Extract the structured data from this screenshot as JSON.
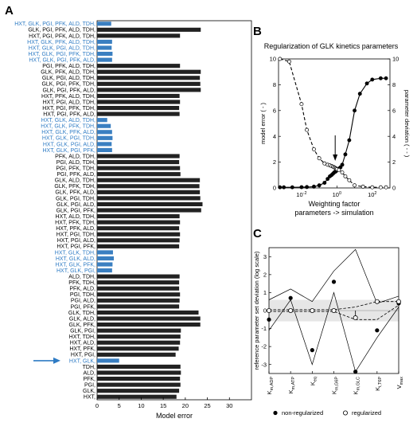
{
  "panels": {
    "a": "A",
    "b": "B",
    "c": "C"
  },
  "colors": {
    "bar_default": "#222222",
    "bar_highlight": "#3a7fc1",
    "text_highlight": "#2e7bc4",
    "arrow": "#2e7bc4",
    "band": "#e6e6e6"
  },
  "chart_data": [
    {
      "type": "bar",
      "orientation": "horizontal",
      "xlabel": "Model error",
      "xlim": [
        0,
        35
      ],
      "xticks": [
        0,
        5,
        10,
        15,
        20,
        25,
        30
      ],
      "categories": [
        "HXT, GLK, PGI, PFK, ALD, TDH,",
        "GLK, PGI, PFK, ALD, TDH,",
        "HXT, PGI, PFK, ALD, TDH,",
        "HXT, GLK, PFK, ALD, TDH,",
        "HXT, GLK, PGI, ALD, TDH,",
        "HXT, GLK, PGI, PFK, TDH,",
        "HXT, GLK, PGI, PFK, ALD,",
        "PGI, PFK, ALD, TDH,",
        "GLK, PFK, ALD, TDH,",
        "GLK, PGI, ALD, TDH,",
        "GLK, PGI, PFK, TDH,",
        "GLK, PGI, PFK, ALD,",
        "HXT, PFK, ALD, TDH,",
        "HXT, PGI, ALD, TDH,",
        "HXT, PGI, PFK, TDH,",
        "HXT, PGI, PFK, ALD,",
        "HXT, GLK, ALD, TDH,",
        "HXT, GLK, PFK, TDH,",
        "HXT, GLK, PFK, ALD,",
        "HXT, GLK, PGI, TDH,",
        "HXT, GLK, PGI, ALD,",
        "HXT, GLK, PGI, PFK,",
        "PFK, ALD, TDH,",
        "PGI, ALD, TDH,",
        "PGI, PFK, TDH,",
        "PGI, PFK, ALD,",
        "GLK, ALD, TDH,",
        "GLK, PFK, TDH,",
        "GLK, PFK, ALD,",
        "GLK, PGI, TDH,",
        "GLK, PGI, ALD,",
        "GLK, PGI, PFK,",
        "HXT, ALD, TDH,",
        "HXT, PFK, TDH,",
        "HXT, PFK, ALD,",
        "HXT, PGI, TDH,",
        "HXT, PGI, ALD,",
        "HXT, PGI, PFK,",
        "HXT, GLK, TDH,",
        "HXT, GLK, ALD,",
        "HXT, GLK, PFK,",
        "HXT, GLK, PGI,",
        "ALD, TDH,",
        "PFK, TDH,",
        "PFK, ALD,",
        "PGI, TDH,",
        "PGI, ALD,",
        "PGI, PFK,",
        "GLK, TDH,",
        "GLK, ALD,",
        "GLK, PFK,",
        "GLK, PGI,",
        "HXT, TDH,",
        "HXT, ALD,",
        "HXT, PFK,",
        "HXT, PGI,",
        "HXT, GLK,",
        "TDH,",
        "ALD,",
        "PFK,",
        "PGI,",
        "GLK,",
        "HXT,"
      ],
      "values": [
        3.2,
        23.5,
        18.8,
        3.4,
        3.3,
        3.5,
        3.4,
        18.8,
        23.5,
        23.3,
        23.4,
        23.5,
        18.7,
        18.8,
        18.6,
        18.7,
        2.3,
        3.1,
        3.4,
        3.5,
        3.3,
        3.4,
        18.7,
        18.6,
        18.8,
        18.9,
        23.3,
        23.2,
        23.3,
        23.4,
        23.9,
        23.6,
        18.7,
        18.8,
        18.6,
        18.8,
        18.7,
        18.6,
        3.6,
        3.8,
        3.5,
        3.4,
        18.7,
        18.6,
        18.6,
        18.8,
        18.7,
        18.6,
        23.0,
        23.4,
        23.4,
        19.0,
        18.9,
        18.8,
        18.5,
        17.8,
        5.0,
        18.9,
        19.0,
        18.8,
        18.9,
        18.6,
        18.0
      ],
      "highlighted": [
        0,
        3,
        4,
        5,
        6,
        16,
        17,
        18,
        19,
        20,
        21,
        38,
        39,
        40,
        41,
        56
      ]
    },
    {
      "type": "line",
      "title": "Regularization of GLK kinetics parameters",
      "xlabel": "Weighting factor",
      "xlabel2": "parameters -> simulation",
      "ylabel": "model error (  -  )",
      "ylabel_right": "parameter deviation (  - -  )",
      "xscale": "log",
      "xlim": [
        0.0005,
        1000
      ],
      "ylim": [
        0,
        10
      ],
      "ylim_right": [
        0,
        10
      ],
      "xticks": [
        "10^-2",
        "10^0",
        "10^2"
      ],
      "yticks": [
        0,
        2,
        4,
        6,
        8,
        10
      ],
      "yticks_right": [
        0,
        2,
        4,
        6,
        8,
        10
      ],
      "series": [
        {
          "style": "solid",
          "x": [
            0.0006,
            0.001,
            0.003,
            0.01,
            0.02,
            0.05,
            0.1,
            0.2,
            0.3,
            0.4,
            0.5,
            0.6,
            0.7,
            0.8,
            0.9,
            1,
            1.3,
            1.6,
            2,
            3,
            5,
            10,
            20,
            50,
            100,
            300,
            600
          ],
          "y": [
            0.05,
            0.05,
            0.05,
            0.06,
            0.07,
            0.1,
            0.2,
            0.4,
            0.7,
            0.9,
            1.0,
            1.1,
            1.2,
            1.25,
            1.3,
            1.4,
            1.5,
            1.6,
            1.8,
            2.6,
            3.7,
            6.0,
            7.3,
            8.1,
            8.4,
            8.5,
            8.5
          ]
        },
        {
          "style": "dashed",
          "x": [
            0.0006,
            0.002,
            0.01,
            0.02,
            0.05,
            0.1,
            0.2,
            0.3,
            0.4,
            0.5,
            0.6,
            0.7,
            0.8,
            0.9,
            1,
            1.3,
            2,
            3,
            5,
            10,
            30,
            100,
            300,
            600
          ],
          "y": [
            10.0,
            9.8,
            6.5,
            4.5,
            3.0,
            2.3,
            1.9,
            1.8,
            1.75,
            1.7,
            1.65,
            1.6,
            1.55,
            1.5,
            1.45,
            1.4,
            1.2,
            0.9,
            0.6,
            0.2,
            0.1,
            0.05,
            0.05,
            0.05
          ]
        }
      ],
      "annotation_arrow_x": 0.8
    },
    {
      "type": "line",
      "ylabel": "reference parameter set deviation (log scale)",
      "ylim": [
        -3.5,
        3.5
      ],
      "yticks": [
        -3,
        -2,
        -1,
        0,
        1,
        2,
        3
      ],
      "categories": [
        "K_m,ADP",
        "K_m,ATP",
        "K_eq",
        "K_m,G6P",
        "K_m,GLC",
        "K_i,T6P",
        "V_max"
      ],
      "legend": [
        "non-regularized",
        "regularized"
      ],
      "legend_position": "bottom",
      "band": [
        -0.6,
        0.6
      ],
      "series": [
        {
          "style": "filled-marker",
          "values": [
            -0.5,
            0.7,
            -2.2,
            1.6,
            -3.4,
            -1.1,
            0.4
          ]
        },
        {
          "style": "open-marker",
          "values": [
            0.0,
            0.0,
            0.0,
            0.0,
            -0.4,
            0.5,
            0.5
          ]
        },
        {
          "style": "thin-line-upper",
          "values": [
            0.6,
            1.2,
            0.5,
            2.2,
            3.4,
            0.4,
            0.8
          ]
        },
        {
          "style": "thin-line-lower",
          "values": [
            -1.1,
            0.6,
            -3.0,
            1.0,
            -3.4,
            -1.5,
            0.2
          ]
        },
        {
          "style": "dashed-upper",
          "values": [
            0.05,
            0.05,
            0.05,
            0.05,
            0.2,
            0.5,
            0.5
          ]
        },
        {
          "style": "dashed-lower",
          "values": [
            -0.05,
            -0.05,
            -0.05,
            -0.05,
            -0.5,
            -0.5,
            0.3
          ]
        }
      ]
    }
  ]
}
